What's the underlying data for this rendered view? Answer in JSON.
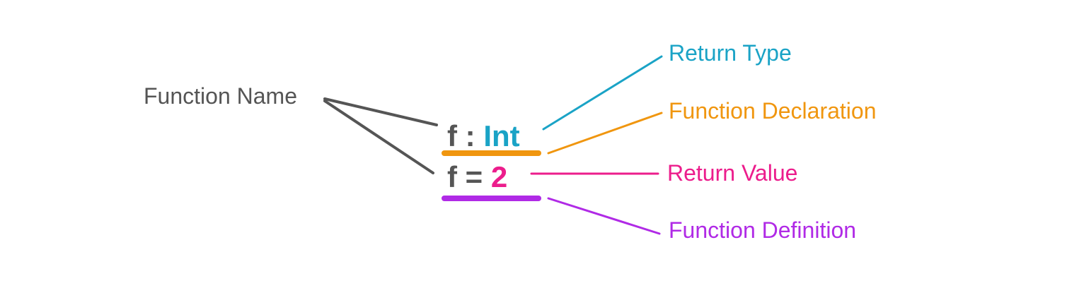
{
  "colors": {
    "text": "#555555",
    "return_type": "#1aa3c6",
    "declaration": "#f0960f",
    "return_value": "#ec1d8c",
    "definition": "#b02ae6"
  },
  "labels": {
    "function_name": "Function Name",
    "return_type": "Return Type",
    "function_declaration": "Function Declaration",
    "return_value": "Return Value",
    "function_definition": "Function Definition"
  },
  "code": {
    "declaration": {
      "name": "f",
      "separator": ":",
      "type": "Int"
    },
    "definition": {
      "name": "f",
      "separator": "=",
      "value": "2"
    }
  }
}
